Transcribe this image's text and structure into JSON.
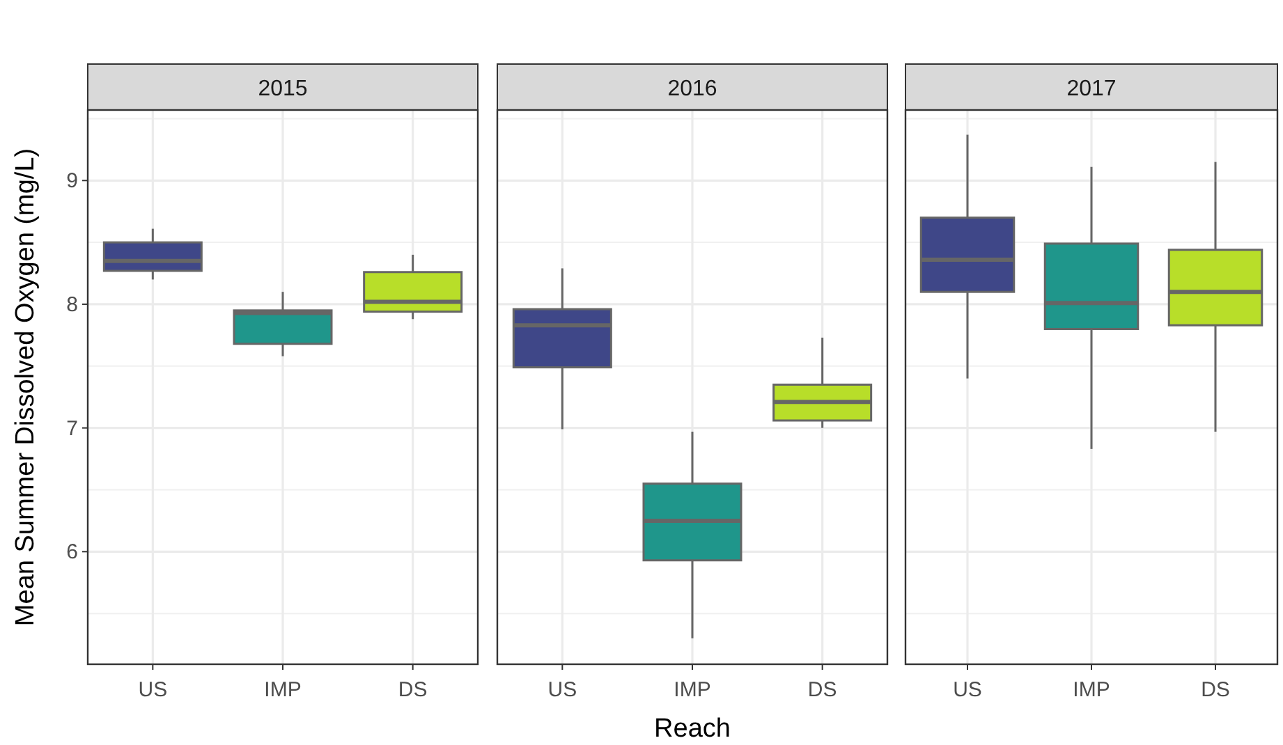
{
  "chart_data": [
    {
      "type": "box",
      "title": "2015",
      "ylabel": "Mean Summer Dissolved Oxygen (mg/L)",
      "categories": [
        "US",
        "IMP",
        "DS"
      ],
      "colors": [
        "#3f4788",
        "#1f968b",
        "#b8de29"
      ],
      "ylim": [
        5.09,
        9.57
      ],
      "yticks": [
        6,
        7,
        8,
        9
      ],
      "grid": true,
      "boxes": [
        {
          "low": 8.2,
          "q1": 8.27,
          "median": 8.35,
          "q3": 8.5,
          "high": 8.61
        },
        {
          "low": 7.58,
          "q1": 7.68,
          "median": 7.93,
          "q3": 7.95,
          "high": 8.1
        },
        {
          "low": 7.88,
          "q1": 7.94,
          "median": 8.02,
          "q3": 8.26,
          "high": 8.4
        }
      ]
    },
    {
      "type": "box",
      "title": "2016",
      "xlabel": "Reach",
      "categories": [
        "US",
        "IMP",
        "DS"
      ],
      "colors": [
        "#3f4788",
        "#1f968b",
        "#b8de29"
      ],
      "ylim": [
        5.09,
        9.57
      ],
      "yticks": [
        6,
        7,
        8,
        9
      ],
      "grid": true,
      "tick_labels": "x",
      "boxes": [
        {
          "low": 6.99,
          "q1": 7.49,
          "median": 7.83,
          "q3": 7.96,
          "high": 8.29
        },
        {
          "low": 5.3,
          "q1": 5.93,
          "median": 6.25,
          "q3": 6.55,
          "high": 6.97
        },
        {
          "low": 7.0,
          "q1": 7.06,
          "median": 7.21,
          "q3": 7.35,
          "high": 7.73
        }
      ]
    },
    {
      "type": "box",
      "title": "2017",
      "categories": [
        "US",
        "IMP",
        "DS"
      ],
      "colors": [
        "#3f4788",
        "#1f968b",
        "#b8de29"
      ],
      "ylim": [
        5.09,
        9.57
      ],
      "yticks": [
        6,
        7,
        8,
        9
      ],
      "grid": true,
      "tick_labels": "x",
      "boxes": [
        {
          "low": 7.4,
          "q1": 8.1,
          "median": 8.36,
          "q3": 8.7,
          "high": 9.37
        },
        {
          "low": 6.83,
          "q1": 7.8,
          "median": 8.01,
          "q3": 8.49,
          "high": 9.11
        },
        {
          "low": 6.97,
          "q1": 7.83,
          "median": 8.1,
          "q3": 8.44,
          "high": 9.15
        }
      ]
    }
  ]
}
